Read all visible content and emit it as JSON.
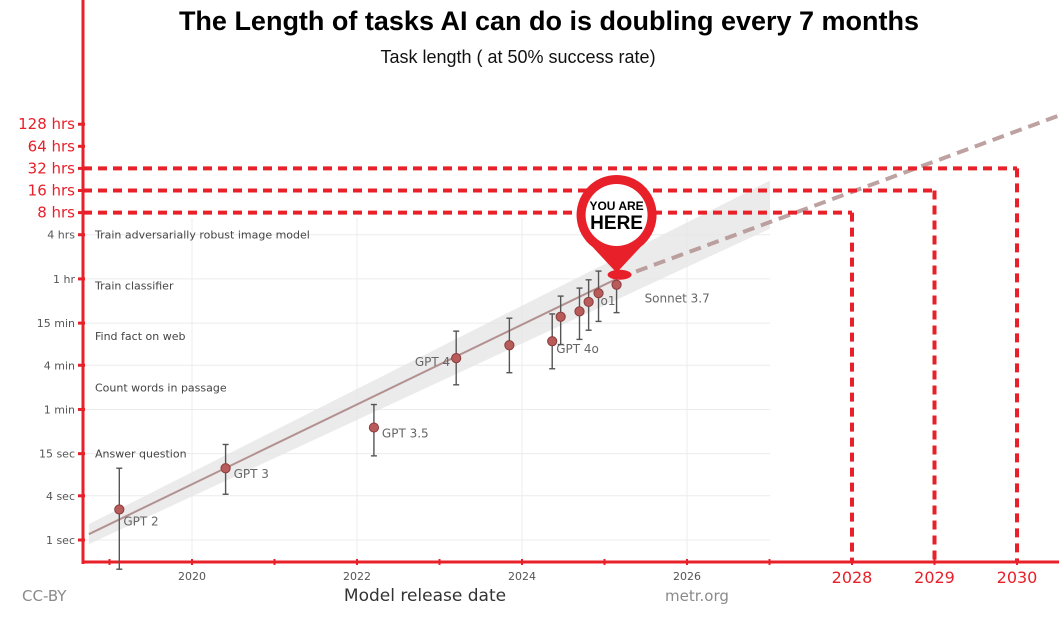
{
  "header": {
    "title": "The Length of tasks AI can do is doubling every 7 months",
    "subtitle": "Task length ( at 50% success rate)"
  },
  "footer": {
    "license": "CC-BY",
    "source": "metr.org"
  },
  "marker": {
    "line1": "YOU ARE",
    "line2": "HERE"
  },
  "chart_data": {
    "type": "scatter",
    "xlabel": "Model release date",
    "ylabel": "",
    "x_scale": "date",
    "y_scale": "log",
    "xlim": [
      "2018-10-01",
      "2031-01-01"
    ],
    "x_ticks": [
      {
        "x": "2020-01-01",
        "label": "2020"
      },
      {
        "x": "2022-01-01",
        "label": "2022"
      },
      {
        "x": "2024-01-01",
        "label": "2024"
      },
      {
        "x": "2026-01-01",
        "label": "2026"
      }
    ],
    "x_ticks_extended": [
      {
        "x": "2028-01-01",
        "label": "2028"
      },
      {
        "x": "2029-01-01",
        "label": "2029"
      },
      {
        "x": "2030-01-01",
        "label": "2030"
      }
    ],
    "y_ticks": [
      {
        "seconds": 1,
        "label": "1 sec"
      },
      {
        "seconds": 4,
        "label": "4 sec"
      },
      {
        "seconds": 15,
        "label": "15 sec"
      },
      {
        "seconds": 60,
        "label": "1 min"
      },
      {
        "seconds": 240,
        "label": "4 min"
      },
      {
        "seconds": 900,
        "label": "15 min"
      },
      {
        "seconds": 3600,
        "label": "1 hr"
      },
      {
        "seconds": 14400,
        "label": "4 hrs"
      }
    ],
    "y_ticks_extended": [
      {
        "seconds": 28800,
        "label": "8 hrs"
      },
      {
        "seconds": 57600,
        "label": "16 hrs"
      },
      {
        "seconds": 115200,
        "label": "32 hrs"
      },
      {
        "seconds": 230400,
        "label": "64 hrs"
      },
      {
        "seconds": 460800,
        "label": "128 hrs"
      }
    ],
    "task_examples": [
      {
        "seconds": 15,
        "label": "Answer question"
      },
      {
        "seconds": 120,
        "label": "Count words in passage"
      },
      {
        "seconds": 600,
        "label": "Find fact on web"
      },
      {
        "seconds": 2940,
        "label": "Train classifier"
      },
      {
        "seconds": 14400,
        "label": "Train adversarially robust image model"
      }
    ],
    "points": [
      {
        "x": "2019-02-14",
        "seconds": 2.6,
        "err_low": 0.4,
        "err_high": 9.5,
        "label": "GPT 2"
      },
      {
        "x": "2020-05-28",
        "seconds": 9.5,
        "err_low": 4.2,
        "err_high": 20,
        "label": "GPT 3"
      },
      {
        "x": "2022-03-15",
        "seconds": 34,
        "err_low": 14,
        "err_high": 70,
        "label": "GPT 3.5"
      },
      {
        "x": "2023-03-14",
        "seconds": 300,
        "err_low": 130,
        "err_high": 700,
        "label": "GPT 4"
      },
      {
        "x": "2023-11-06",
        "seconds": 450,
        "err_low": 190,
        "err_high": 1050,
        "label": ""
      },
      {
        "x": "2024-05-13",
        "seconds": 510,
        "err_low": 215,
        "err_high": 1200,
        "label": "GPT 4o"
      },
      {
        "x": "2024-06-20",
        "seconds": 1100,
        "err_low": 460,
        "err_high": 2100,
        "label": ""
      },
      {
        "x": "2024-09-12",
        "seconds": 1300,
        "err_low": 540,
        "err_high": 2700,
        "label": ""
      },
      {
        "x": "2024-10-22",
        "seconds": 1750,
        "err_low": 720,
        "err_high": 3500,
        "label": ""
      },
      {
        "x": "2024-12-05",
        "seconds": 2300,
        "err_low": 950,
        "err_high": 4600,
        "label": "o1"
      },
      {
        "x": "2025-02-24",
        "seconds": 3000,
        "err_low": 1250,
        "err_high": 6000,
        "label": "Sonnet 3.7"
      }
    ],
    "trend": {
      "start": {
        "x": "2018-10-01",
        "seconds": 1.2
      },
      "fit_end": {
        "x": "2025-03-01",
        "seconds": 3700
      },
      "extrapolation_end": {
        "x": "2030-07-01",
        "seconds": 600000
      }
    },
    "projections": [
      {
        "x": "2028-01-01",
        "seconds": 28800,
        "label": "8 hrs"
      },
      {
        "x": "2029-01-01",
        "seconds": 57600,
        "label": "16 hrs"
      },
      {
        "x": "2030-01-01",
        "seconds": 115200,
        "label": "32 hrs"
      }
    ],
    "colors": {
      "accent": "#e8202a",
      "point": "#b85b5b",
      "trend": "#b39191",
      "band": "#e6e6e6",
      "grid": "#ececec"
    }
  }
}
